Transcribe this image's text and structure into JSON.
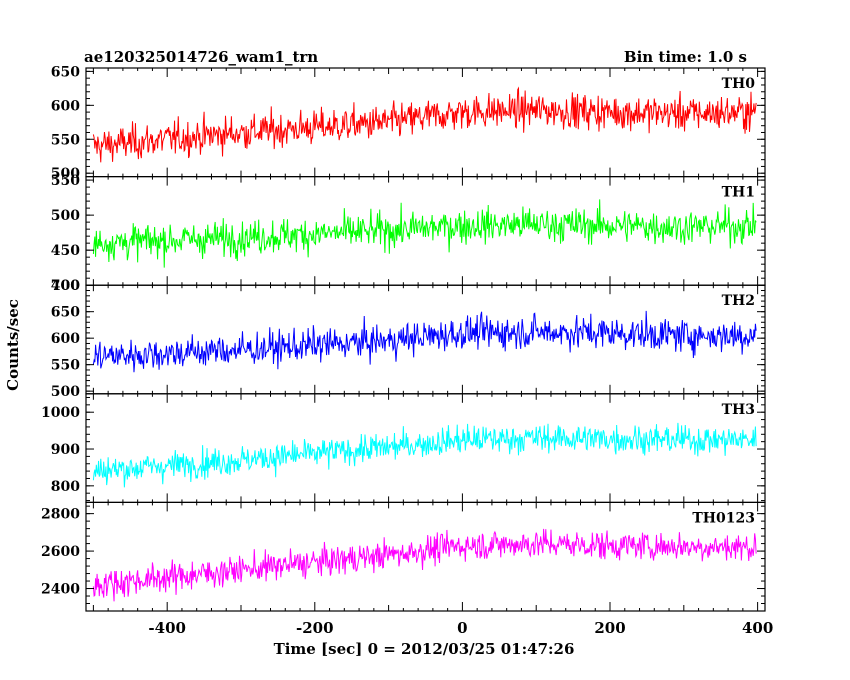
{
  "header": {
    "title": "ae120325014726_wam1_trn",
    "bin_time": "Bin time: 1.0 s"
  },
  "chart_data": {
    "type": "line",
    "title": "ae120325014726_wam1_trn",
    "subtitle": "Bin time: 1.0 s",
    "xlabel": "Time [sec] 0 = 2012/03/25 01:47:26",
    "ylabel": "Counts/sec",
    "xlim": [
      -510,
      410
    ],
    "x_ticks": [
      -400,
      -200,
      0,
      200,
      400
    ],
    "x_step": 1,
    "grid": false,
    "legend": "none",
    "panels": [
      {
        "name": "TH0",
        "color": "#ff0000",
        "ylim": [
          495,
          655
        ],
        "y_ticks": [
          500,
          550,
          600,
          650
        ],
        "trend": {
          "x": [
            -500,
            -300,
            -100,
            0,
            100,
            200,
            300,
            398
          ],
          "y": [
            540,
            560,
            575,
            590,
            593,
            590,
            588,
            590
          ]
        },
        "noise_sd": 20
      },
      {
        "name": "TH1",
        "color": "#00ff00",
        "ylim": [
          400,
          555
        ],
        "y_ticks": [
          400,
          450,
          500,
          550
        ],
        "trend": {
          "x": [
            -500,
            -300,
            -100,
            0,
            100,
            200,
            300,
            398
          ],
          "y": [
            460,
            468,
            478,
            485,
            487,
            485,
            483,
            485
          ]
        },
        "noise_sd": 19
      },
      {
        "name": "TH2",
        "color": "#0000ff",
        "ylim": [
          495,
          700
        ],
        "y_ticks": [
          500,
          550,
          600,
          650,
          700
        ],
        "trend": {
          "x": [
            -500,
            -300,
            -100,
            0,
            100,
            200,
            300,
            398
          ],
          "y": [
            565,
            578,
            595,
            610,
            612,
            610,
            605,
            605
          ]
        },
        "noise_sd": 24
      },
      {
        "name": "TH3",
        "color": "#00ffff",
        "ylim": [
          755,
          1050
        ],
        "y_ticks": [
          800,
          900,
          1000
        ],
        "trend": {
          "x": [
            -500,
            -300,
            -100,
            0,
            100,
            200,
            300,
            398
          ],
          "y": [
            840,
            870,
            905,
            925,
            930,
            928,
            925,
            925
          ]
        },
        "noise_sd": 30
      },
      {
        "name": "TH0123",
        "color": "#ff00ff",
        "ylim": [
          2280,
          2860
        ],
        "y_ticks": [
          2400,
          2600,
          2800
        ],
        "trend": {
          "x": [
            -500,
            -300,
            -100,
            0,
            100,
            200,
            300,
            398
          ],
          "y": [
            2420,
            2500,
            2580,
            2630,
            2640,
            2630,
            2625,
            2620
          ]
        },
        "noise_sd": 60
      }
    ]
  }
}
